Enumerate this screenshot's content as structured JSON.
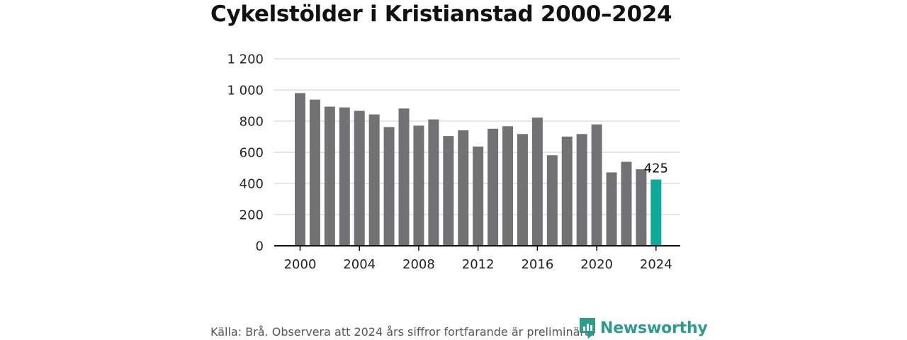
{
  "chart_data": {
    "type": "bar",
    "title": "Cykelstölder i Kristianstad 2000–2024",
    "x": [
      2000,
      2001,
      2002,
      2003,
      2004,
      2005,
      2006,
      2007,
      2008,
      2009,
      2010,
      2011,
      2012,
      2013,
      2014,
      2015,
      2016,
      2017,
      2018,
      2019,
      2020,
      2021,
      2022,
      2023,
      2024
    ],
    "values": [
      980,
      938,
      893,
      888,
      866,
      843,
      762,
      881,
      771,
      811,
      704,
      741,
      637,
      751,
      767,
      717,
      823,
      581,
      701,
      717,
      779,
      471,
      539,
      491,
      425
    ],
    "x_ticks": [
      "2000",
      "2004",
      "2008",
      "2012",
      "2016",
      "2020",
      "2024"
    ],
    "y_ticks": [
      "0",
      "200",
      "400",
      "600",
      "800",
      "1 000",
      "1 200"
    ],
    "y_tick_values": [
      0,
      200,
      400,
      600,
      800,
      1000,
      1200
    ],
    "ylim": [
      0,
      1200
    ],
    "xlabel": "",
    "ylabel": "",
    "grid": true,
    "annotations": [
      {
        "x": 2024,
        "text": "425"
      }
    ],
    "colors": {
      "bar": "#727174",
      "highlight": "#0fa99a",
      "grid": "#dddddd",
      "axis": "#111111"
    }
  },
  "source_note": "Källa: Brå. Observera att 2024 års siffror fortfarande är preliminära.",
  "brand": {
    "name": "Newsworthy",
    "icon": "newsworthy-logo-icon",
    "color": "#2e9c8c"
  }
}
